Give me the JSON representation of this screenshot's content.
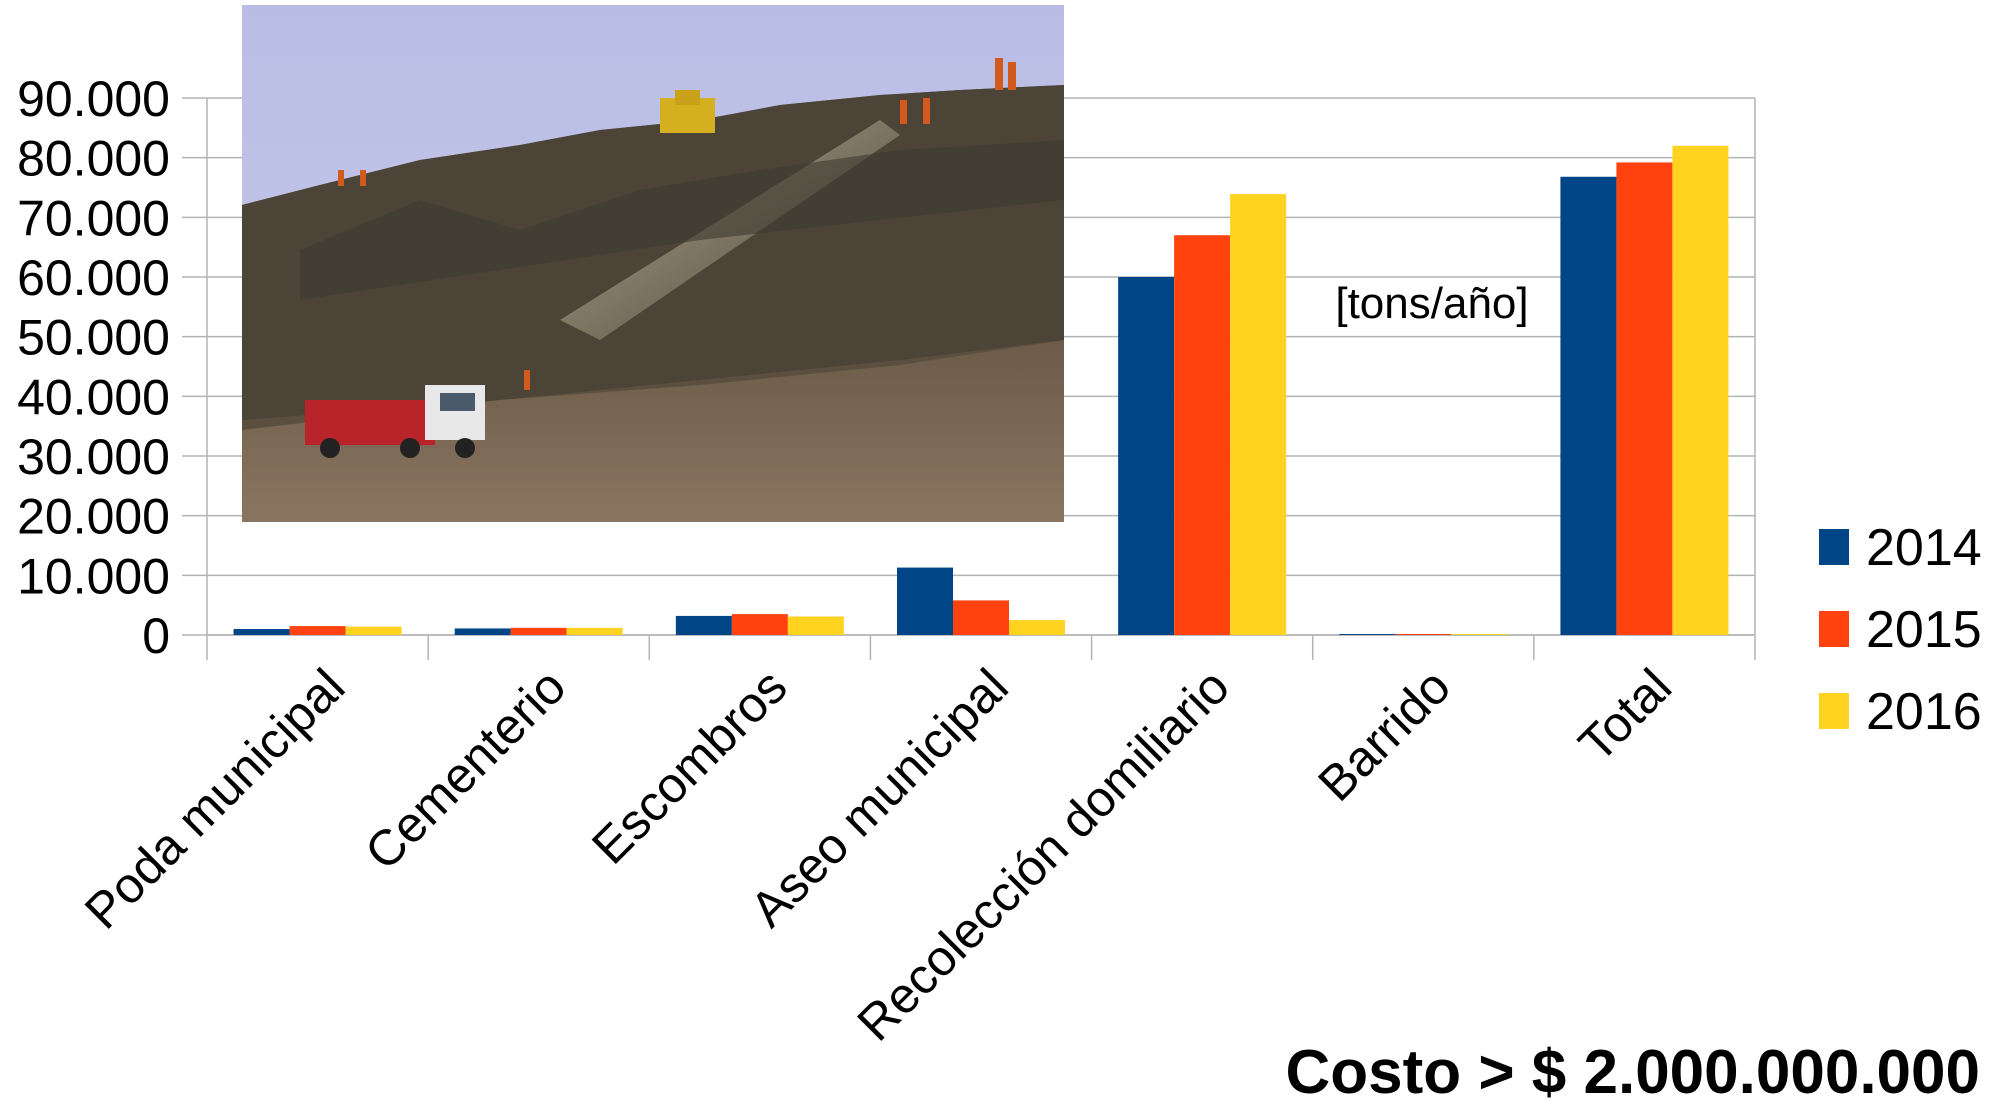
{
  "chart_data": {
    "type": "bar",
    "categories": [
      "Poda municipal",
      "Cementerio",
      "Escombros",
      "Aseo municipal",
      "Recolección domiliario",
      "Barrido",
      "Total"
    ],
    "series": [
      {
        "name": "2014",
        "color": "#004586",
        "values": [
          1000,
          1100,
          3200,
          11300,
          60000,
          100,
          76800
        ]
      },
      {
        "name": "2015",
        "color": "#ff420e",
        "values": [
          1500,
          1200,
          3500,
          5800,
          67000,
          120,
          79200
        ]
      },
      {
        "name": "2016",
        "color": "#ffd320",
        "values": [
          1400,
          1200,
          3100,
          2500,
          73900,
          80,
          82000
        ]
      }
    ],
    "yticks": [
      "0",
      "10.000",
      "20.000",
      "30.000",
      "40.000",
      "50.000",
      "60.000",
      "70.000",
      "80.000",
      "90.000"
    ],
    "ylim": [
      0,
      90000
    ],
    "grid": true,
    "legend_position": "right",
    "unit_label": "[tons/año]",
    "annotation": "Costo > $ 2.000.000.000"
  },
  "photo": {
    "description_icon": "landfill-photo"
  }
}
